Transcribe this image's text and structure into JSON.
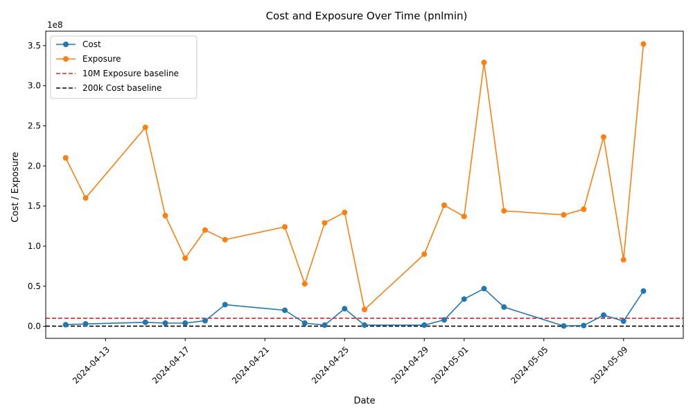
{
  "chart_data": {
    "type": "line",
    "title": "Cost and Exposure Over Time (pnlmin)",
    "xlabel": "Date",
    "ylabel": "Cost / Exposure",
    "y_offset_label": "1e8",
    "xlim": [
      "2024-04-10",
      "2024-05-12"
    ],
    "ylim": [
      -15000000,
      368000000
    ],
    "x_ticks": [
      "2024-04-13",
      "2024-04-17",
      "2024-04-21",
      "2024-04-25",
      "2024-04-29",
      "2024-05-01",
      "2024-05-05",
      "2024-05-09"
    ],
    "y_ticks": [
      0,
      50000000,
      100000000,
      150000000,
      200000000,
      250000000,
      300000000,
      350000000
    ],
    "y_tick_labels": [
      "0.0",
      "0.5",
      "1.0",
      "1.5",
      "2.0",
      "2.5",
      "3.0",
      "3.5"
    ],
    "grid": false,
    "legend_position": "top-left",
    "dates": [
      "2024-04-11",
      "2024-04-12",
      "2024-04-15",
      "2024-04-16",
      "2024-04-17",
      "2024-04-18",
      "2024-04-19",
      "2024-04-22",
      "2024-04-23",
      "2024-04-24",
      "2024-04-25",
      "2024-04-26",
      "2024-04-29",
      "2024-04-30",
      "2024-05-01",
      "2024-05-02",
      "2024-05-03",
      "2024-05-06",
      "2024-05-07",
      "2024-05-08",
      "2024-05-09",
      "2024-05-10"
    ],
    "series": [
      {
        "name": "Cost",
        "color": "#1f77b4",
        "values": [
          2000000,
          3000000,
          5000000,
          4000000,
          4000000,
          7000000,
          27000000,
          20000000,
          4000000,
          1500000,
          22000000,
          1500000,
          1500000,
          8000000,
          34000000,
          47000000,
          24000000,
          500000,
          1000000,
          14000000,
          6500000,
          44000000
        ]
      },
      {
        "name": "Exposure",
        "color": "#ff7f0e",
        "values": [
          210000000,
          160000000,
          248000000,
          138000000,
          85000000,
          120000000,
          108000000,
          124000000,
          53000000,
          129000000,
          142000000,
          21000000,
          90000000,
          151000000,
          137000000,
          329000000,
          144000000,
          139000000,
          146000000,
          236000000,
          83000000,
          352000000
        ]
      }
    ],
    "baselines": [
      {
        "name": "10M Exposure baseline",
        "value": 10000000,
        "color": "#d62728"
      },
      {
        "name": "200k Cost baseline",
        "value": 200000,
        "color": "#000000"
      }
    ]
  }
}
